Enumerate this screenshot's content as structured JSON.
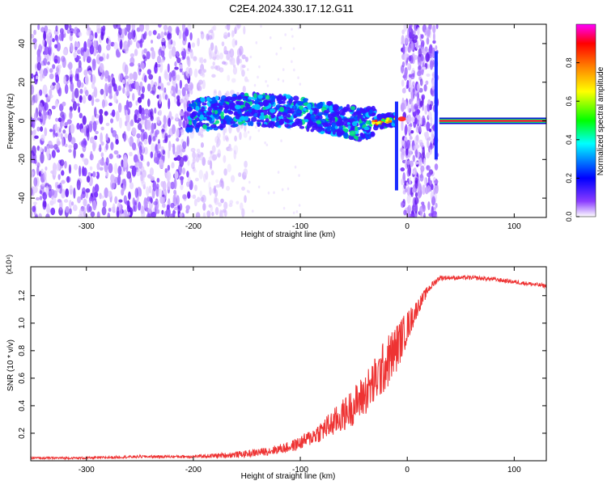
{
  "figure_title": "C2E4.2024.330.17.12.G11",
  "chart_data": [
    {
      "type": "heatmap",
      "title": "C2E4.2024.330.17.12.G11",
      "xlabel": "Height of straight line (km)",
      "ylabel": "Frequency (Hz)",
      "xlim": [
        -352,
        130
      ],
      "ylim": [
        -50,
        50
      ],
      "xticks": [
        -300,
        -200,
        -100,
        0,
        100
      ],
      "yticks": [
        -40,
        -20,
        0,
        20,
        40
      ],
      "colorbar": {
        "label": "Normalized spectral amplitude",
        "range": [
          0,
          1
        ],
        "ticks": [
          "0.0",
          "0.2",
          "0.4",
          "0.6",
          "0.8"
        ],
        "colors": [
          "#ffffff",
          "#8a3cff",
          "#0000ff",
          "#00ffff",
          "#00ff00",
          "#ffff00",
          "#ff8000",
          "#ff0000",
          "#ff00ff"
        ]
      },
      "ridge": {
        "x": [
          -205,
          -180,
          -150,
          -120,
          -100,
          -80,
          -60,
          -40,
          -20,
          -10,
          30,
          130
        ],
        "frequency": [
          3,
          4,
          6,
          5,
          4,
          2,
          0,
          -2,
          0,
          1,
          0,
          0
        ]
      }
    },
    {
      "type": "line",
      "xlabel": "Height of straight line (km)",
      "ylabel": "SNR (10 * v/v)",
      "y_multiplier": "(x10⁴)",
      "xlim": [
        -352,
        130
      ],
      "ylim": [
        0,
        1.41
      ],
      "xticks": [
        -300,
        -200,
        -100,
        0,
        100
      ],
      "yticks": [
        0.2,
        0.4,
        0.6,
        0.8,
        1.0,
        1.2
      ],
      "yticklabels": [
        "0.2",
        "0.4",
        "0.6",
        "0.8",
        "1.0",
        "1.2"
      ],
      "series": [
        {
          "color": "#ee3333",
          "x": [
            -352,
            -300,
            -250,
            -200,
            -170,
            -150,
            -130,
            -110,
            -100,
            -90,
            -80,
            -70,
            -60,
            -50,
            -40,
            -30,
            -20,
            -10,
            0,
            10,
            20,
            30,
            40,
            60,
            80,
            100,
            120,
            130
          ],
          "y": [
            0.02,
            0.02,
            0.03,
            0.03,
            0.04,
            0.05,
            0.07,
            0.1,
            0.13,
            0.17,
            0.22,
            0.27,
            0.33,
            0.4,
            0.48,
            0.58,
            0.7,
            0.82,
            0.97,
            1.12,
            1.25,
            1.33,
            1.33,
            1.33,
            1.32,
            1.3,
            1.28,
            1.27
          ],
          "noise": [
            0.008,
            0.008,
            0.01,
            0.01,
            0.02,
            0.025,
            0.03,
            0.04,
            0.05,
            0.06,
            0.08,
            0.1,
            0.12,
            0.14,
            0.16,
            0.18,
            0.2,
            0.18,
            0.12,
            0.06,
            0.03,
            0.02,
            0.015,
            0.015,
            0.015,
            0.015,
            0.015,
            0.015
          ]
        }
      ]
    }
  ]
}
